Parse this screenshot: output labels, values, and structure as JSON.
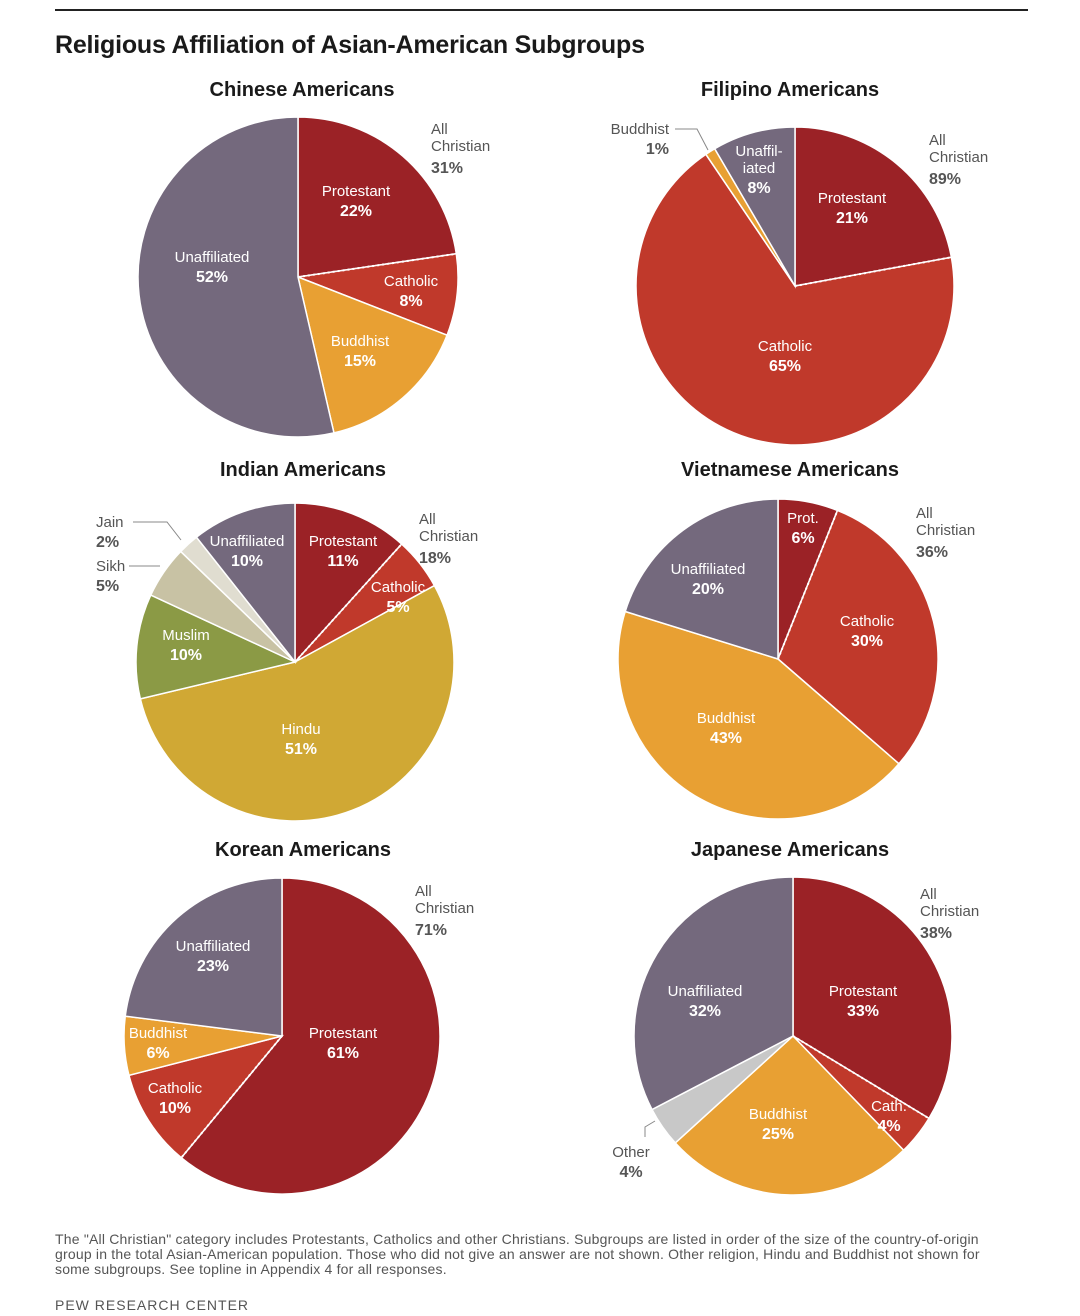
{
  "title": "Religious Affiliation of Asian-American Subgroups",
  "note": "The \"All Christian\" category includes Protestants, Catholics and other Christians. Subgroups are listed in order of the size of the country-of-origin group in the total Asian-American population. Those who did not give an answer are not shown. Other religion, Hindu and Buddhist not shown for some subgroups. See topline in Appendix 4 for all responses.",
  "source": "PEW RESEARCH CENTER",
  "colors": {
    "protestant": "#9b2226",
    "catholic": "#c0392b",
    "buddhist": "#e8a033",
    "unaffiliated": "#74697d",
    "hindu": "#d0a834",
    "muslim": "#8b9a45",
    "sikh": "#c8c2a4",
    "jain": "#e0ddd0",
    "other": "#c8c8c8",
    "label_light": "#ffffff",
    "label_dark": "#555555"
  },
  "chart_data": [
    {
      "type": "pie",
      "title": "Chinese Americans",
      "all_christian": {
        "label": "All Christian",
        "value": "31%"
      },
      "slices": [
        {
          "name": "Protestant",
          "value": 22,
          "label": "22%"
        },
        {
          "name": "Catholic",
          "value": 8,
          "label": "8%"
        },
        {
          "name": "Buddhist",
          "value": 15,
          "label": "15%"
        },
        {
          "name": "Unaffiliated",
          "value": 52,
          "label": "52%"
        }
      ]
    },
    {
      "type": "pie",
      "title": "Filipino Americans",
      "all_christian": {
        "label": "All Christian",
        "value": "89%"
      },
      "slices": [
        {
          "name": "Protestant",
          "value": 21,
          "label": "21%"
        },
        {
          "name": "Catholic",
          "value": 65,
          "label": "65%"
        },
        {
          "name": "Buddhist",
          "value": 1,
          "label": "1%"
        },
        {
          "name": "Unaffiliated",
          "value": 8,
          "label": "8%"
        }
      ]
    },
    {
      "type": "pie",
      "title": "Indian Americans",
      "all_christian": {
        "label": "All Christian",
        "value": "18%"
      },
      "slices": [
        {
          "name": "Protestant",
          "value": 11,
          "label": "11%"
        },
        {
          "name": "Catholic",
          "value": 5,
          "label": "5%"
        },
        {
          "name": "Hindu",
          "value": 51,
          "label": "51%"
        },
        {
          "name": "Muslim",
          "value": 10,
          "label": "10%"
        },
        {
          "name": "Sikh",
          "value": 5,
          "label": "5%"
        },
        {
          "name": "Jain",
          "value": 2,
          "label": "2%"
        },
        {
          "name": "Unaffiliated",
          "value": 10,
          "label": "10%"
        }
      ]
    },
    {
      "type": "pie",
      "title": "Vietnamese Americans",
      "all_christian": {
        "label": "All Christian",
        "value": "36%"
      },
      "slices": [
        {
          "name": "Prot.",
          "value": 6,
          "label": "6%"
        },
        {
          "name": "Catholic",
          "value": 30,
          "label": "30%"
        },
        {
          "name": "Buddhist",
          "value": 43,
          "label": "43%"
        },
        {
          "name": "Unaffiliated",
          "value": 20,
          "label": "20%"
        }
      ]
    },
    {
      "type": "pie",
      "title": "Korean Americans",
      "all_christian": {
        "label": "All Christian",
        "value": "71%"
      },
      "slices": [
        {
          "name": "Protestant",
          "value": 61,
          "label": "61%"
        },
        {
          "name": "Catholic",
          "value": 10,
          "label": "10%"
        },
        {
          "name": "Buddhist",
          "value": 6,
          "label": "6%"
        },
        {
          "name": "Unaffiliated",
          "value": 23,
          "label": "23%"
        }
      ]
    },
    {
      "type": "pie",
      "title": "Japanese Americans",
      "all_christian": {
        "label": "All Christian",
        "value": "38%"
      },
      "slices": [
        {
          "name": "Protestant",
          "value": 33,
          "label": "33%"
        },
        {
          "name": "Cath.",
          "value": 4,
          "label": "4%"
        },
        {
          "name": "Buddhist",
          "value": 25,
          "label": "25%"
        },
        {
          "name": "Other",
          "value": 4,
          "label": "4%"
        },
        {
          "name": "Unaffiliated",
          "value": 32,
          "label": "32%"
        }
      ]
    }
  ]
}
